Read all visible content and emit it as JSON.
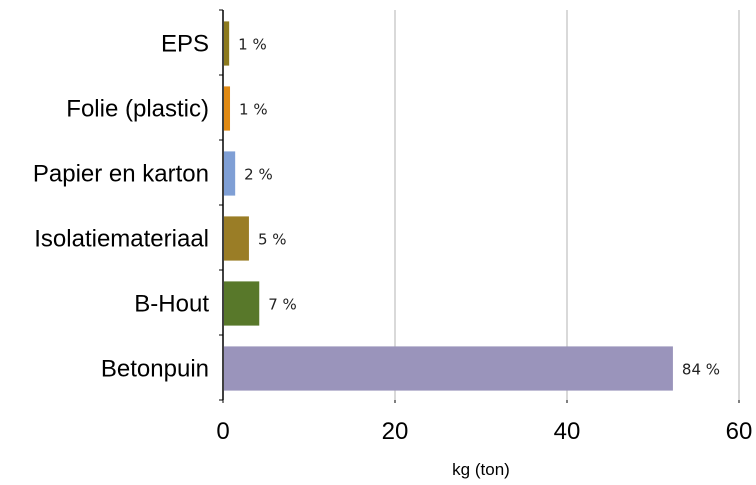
{
  "chart_data": {
    "type": "bar",
    "orientation": "horizontal",
    "categories": [
      "EPS",
      "Folie (plastic)",
      "Papier en karton",
      "Isolatiemateriaal",
      "B-Hout",
      "Betonpuin"
    ],
    "values": [
      0.6,
      0.7,
      1.3,
      2.9,
      4.1,
      52.2
    ],
    "data_labels": [
      "1 %",
      "1 %",
      "2 %",
      "5 %",
      "7 %",
      "84 %"
    ],
    "colors": [
      "#8c7a1e",
      "#e08a14",
      "#7f9fd5",
      "#9a7d26",
      "#58782a",
      "#9a94bb"
    ],
    "xlabel": "kg (ton)",
    "ylabel": "",
    "title": "",
    "xlim": [
      0,
      60
    ],
    "x_ticks": [
      "0",
      "20",
      "40",
      "60"
    ],
    "grid": true
  }
}
